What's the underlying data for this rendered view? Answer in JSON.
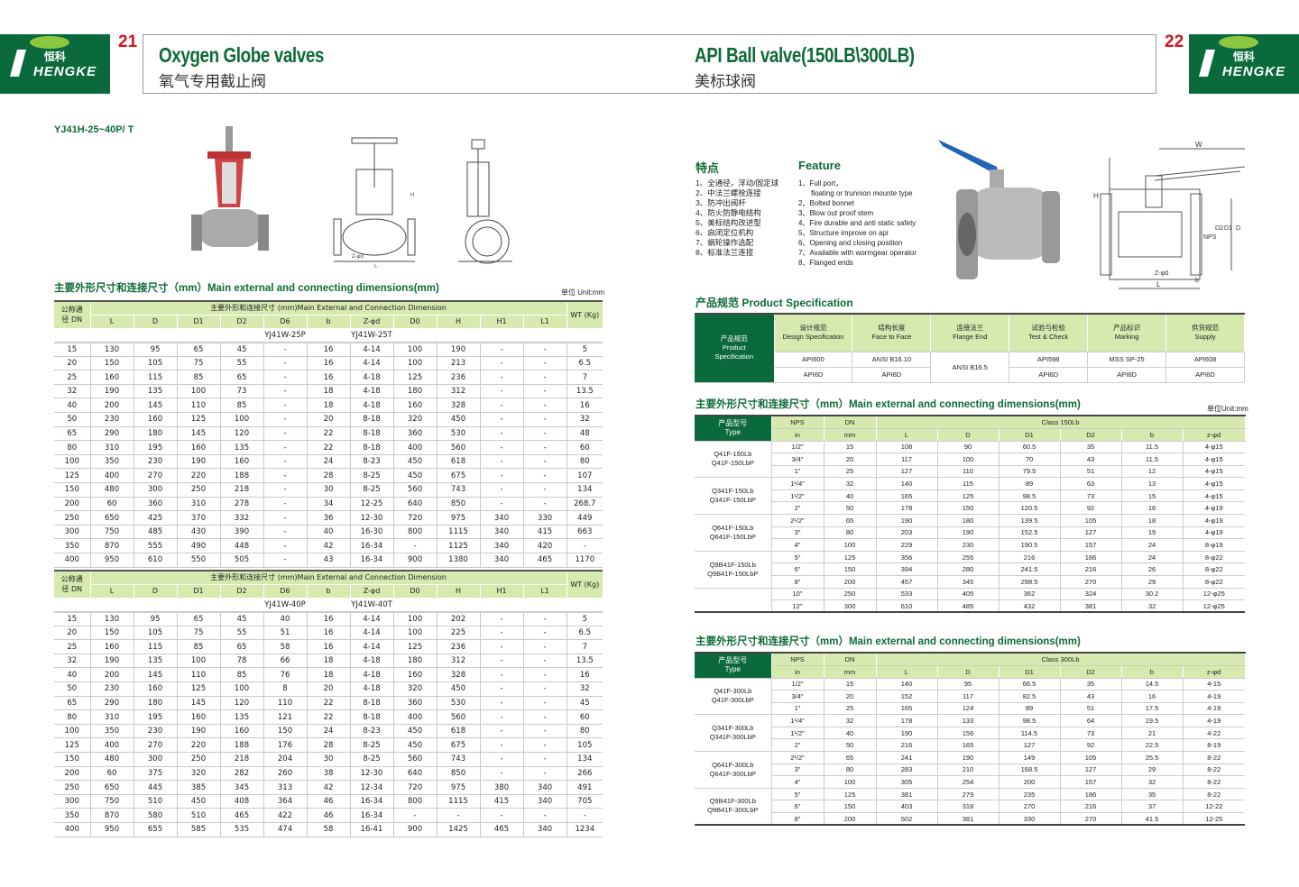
{
  "left_page": {
    "page_number": "21",
    "logo": {
      "brand": "HENGKE",
      "brand_cn": "恒科",
      "color": "#0b6a3b"
    },
    "title": "Oxygen Globe valves",
    "subtitle": "氧气专用截止阀",
    "model_label": "YJ41H-25~40P/ T",
    "section_title": "主要外形尺寸和连接尺寸（mm）Main external and connecting dimensions(mm)",
    "unit_label": "单位 Unit:mm",
    "drawing_labels": [
      "H",
      "L",
      "D0",
      "Z-φd",
      "L1",
      "H1"
    ],
    "table_headers": {
      "dn": "公称通径 DN",
      "group": "主要外形和连接尺寸 (mm)Main External and Connection Dimension",
      "columns": [
        "L",
        "D",
        "D1",
        "D2",
        "D6",
        "b",
        "Z-φd",
        "D0",
        "H",
        "H1",
        "L1"
      ],
      "wt": "WT (Kg)"
    },
    "tables": [
      {
        "models": [
          "YJ41W-25P",
          "YJ41W-25T"
        ],
        "rows": [
          [
            "15",
            "130",
            "95",
            "65",
            "45",
            "-",
            "16",
            "4-14",
            "100",
            "190",
            "-",
            "-",
            "5"
          ],
          [
            "20",
            "150",
            "105",
            "75",
            "55",
            "-",
            "16",
            "4-14",
            "100",
            "213",
            "-",
            "-",
            "6.5"
          ],
          [
            "25",
            "160",
            "115",
            "85",
            "65",
            "-",
            "16",
            "4-18",
            "125",
            "236",
            "-",
            "-",
            "7"
          ],
          [
            "32",
            "190",
            "135",
            "100",
            "73",
            "-",
            "18",
            "4-18",
            "180",
            "312",
            "-",
            "-",
            "13.5"
          ],
          [
            "40",
            "200",
            "145",
            "110",
            "85",
            "-",
            "18",
            "4-18",
            "160",
            "328",
            "-",
            "-",
            "16"
          ],
          [
            "50",
            "230",
            "160",
            "125",
            "100",
            "-",
            "20",
            "8-18",
            "320",
            "450",
            "-",
            "-",
            "32"
          ],
          [
            "65",
            "290",
            "180",
            "145",
            "120",
            "-",
            "22",
            "8-18",
            "360",
            "530",
            "-",
            "-",
            "48"
          ],
          [
            "80",
            "310",
            "195",
            "160",
            "135",
            "-",
            "22",
            "8-18",
            "400",
            "560",
            "-",
            "-",
            "60"
          ],
          [
            "100",
            "350",
            "230",
            "190",
            "160",
            "-",
            "24",
            "8-23",
            "450",
            "618",
            "-",
            "-",
            "80"
          ],
          [
            "125",
            "400",
            "270",
            "220",
            "188",
            "-",
            "28",
            "8-25",
            "450",
            "675",
            "-",
            "-",
            "107"
          ],
          [
            "150",
            "480",
            "300",
            "250",
            "218",
            "-",
            "30",
            "8-25",
            "560",
            "743",
            "-",
            "-",
            "134"
          ],
          [
            "200",
            "60",
            "360",
            "310",
            "278",
            "-",
            "34",
            "12-25",
            "640",
            "850",
            "-",
            "-",
            "268.7"
          ],
          [
            "250",
            "650",
            "425",
            "370",
            "332",
            "-",
            "36",
            "12-30",
            "720",
            "975",
            "340",
            "330",
            "449"
          ],
          [
            "300",
            "750",
            "485",
            "430",
            "390",
            "-",
            "40",
            "16-30",
            "800",
            "1115",
            "340",
            "415",
            "663"
          ],
          [
            "350",
            "870",
            "555",
            "490",
            "448",
            "-",
            "42",
            "16-34",
            "-",
            "1125",
            "340",
            "420",
            "-"
          ],
          [
            "400",
            "950",
            "610",
            "550",
            "505",
            "-",
            "43",
            "16-34",
            "900",
            "1380",
            "340",
            "465",
            "1170"
          ]
        ]
      },
      {
        "models": [
          "YJ41W-40P",
          "YJ41W-40T"
        ],
        "rows": [
          [
            "15",
            "130",
            "95",
            "65",
            "45",
            "40",
            "16",
            "4-14",
            "100",
            "202",
            "-",
            "-",
            "5"
          ],
          [
            "20",
            "150",
            "105",
            "75",
            "55",
            "51",
            "16",
            "4-14",
            "100",
            "225",
            "-",
            "-",
            "6.5"
          ],
          [
            "25",
            "160",
            "115",
            "85",
            "65",
            "58",
            "16",
            "4-14",
            "125",
            "236",
            "-",
            "-",
            "7"
          ],
          [
            "32",
            "190",
            "135",
            "100",
            "78",
            "66",
            "18",
            "4-18",
            "180",
            "312",
            "-",
            "-",
            "13.5"
          ],
          [
            "40",
            "200",
            "145",
            "110",
            "85",
            "76",
            "18",
            "4-18",
            "160",
            "328",
            "-",
            "-",
            "16"
          ],
          [
            "50",
            "230",
            "160",
            "125",
            "100",
            "8",
            "20",
            "4-18",
            "320",
            "450",
            "-",
            "-",
            "32"
          ],
          [
            "65",
            "290",
            "180",
            "145",
            "120",
            "110",
            "22",
            "8-18",
            "360",
            "530",
            "-",
            "-",
            "45"
          ],
          [
            "80",
            "310",
            "195",
            "160",
            "135",
            "121",
            "22",
            "8-18",
            "400",
            "560",
            "-",
            "-",
            "60"
          ],
          [
            "100",
            "350",
            "230",
            "190",
            "160",
            "150",
            "24",
            "8-23",
            "450",
            "618",
            "-",
            "-",
            "80"
          ],
          [
            "125",
            "400",
            "270",
            "220",
            "188",
            "176",
            "28",
            "8-25",
            "450",
            "675",
            "-",
            "-",
            "105"
          ],
          [
            "150",
            "480",
            "300",
            "250",
            "218",
            "204",
            "30",
            "8-25",
            "560",
            "743",
            "-",
            "-",
            "134"
          ],
          [
            "200",
            "60",
            "375",
            "320",
            "282",
            "260",
            "38",
            "12-30",
            "640",
            "850",
            "-",
            "-",
            "266"
          ],
          [
            "250",
            "650",
            "445",
            "385",
            "345",
            "313",
            "42",
            "12-34",
            "720",
            "975",
            "380",
            "340",
            "491"
          ],
          [
            "300",
            "750",
            "510",
            "450",
            "408",
            "364",
            "46",
            "16-34",
            "800",
            "1115",
            "415",
            "340",
            "705"
          ],
          [
            "350",
            "870",
            "580",
            "510",
            "465",
            "422",
            "46",
            "16-34",
            "-",
            "-",
            "-",
            "-",
            "-"
          ],
          [
            "400",
            "950",
            "655",
            "585",
            "535",
            "474",
            "58",
            "16-41",
            "900",
            "1425",
            "465",
            "340",
            "1234"
          ]
        ]
      }
    ]
  },
  "right_page": {
    "page_number": "22",
    "logo": {
      "brand": "HENGKE",
      "brand_cn": "恒科"
    },
    "title": "API Ball valve(150LB\\300LB)",
    "subtitle": "美标球阀",
    "features_cn_title": "特点",
    "features_en_title": "Feature",
    "features_cn": [
      "1、全通径，浮动/固定球",
      "2、中法兰螺栓连接",
      "3、防冲出阀杆",
      "4、防火防静电结构",
      "5、美标结构改进型",
      "6、启闭定位机构",
      "7、蜗轮操作选配",
      "8、标准法兰连接"
    ],
    "features_en": [
      "1、Full port，",
      "floating or trunnion mounte type",
      "2、Bolted bonnet",
      "3、Blow out proof stem",
      "4、Fire durable and anti static safety",
      "5、Structure improve on api",
      "6、Opening and closing position",
      "7、Available with wormgear operator",
      "8、Flanged ends"
    ],
    "drawing_labels": {
      "w": "W",
      "h": "H",
      "l": "L",
      "nps": "NPS",
      "d2": "D2",
      "d1": "D1",
      "d": "D",
      "zd": "Z-φd",
      "b": "b"
    },
    "spec_title": "产品规范 Product Specification",
    "spec": {
      "side": [
        "产品规范",
        "Product",
        "Specification"
      ],
      "headers": [
        [
          "设计规范",
          "Design Specification"
        ],
        [
          "结构长度",
          "Face to Face"
        ],
        [
          "连接法兰",
          "Flange End"
        ],
        [
          "试验与检验",
          "Test & Check"
        ],
        [
          "产品标识",
          "Marking"
        ],
        [
          "供货规范",
          "Supply"
        ]
      ],
      "row1": [
        "API600",
        "ANSI B16.10",
        "ANSI B16.5",
        "API598",
        "MSS SP-25",
        "API608"
      ],
      "row2": [
        "API6D",
        "API6D",
        "API6D",
        "API6D",
        "API6D"
      ]
    },
    "section_title": "主要外形尺寸和连接尺寸（mm）Main external and connecting dimensions(mm)",
    "unit_label": "单位Unit:mm",
    "ball_headers": {
      "type": [
        "产品型号",
        "Type"
      ],
      "nps": "NPS",
      "dn": "DN",
      "in": "in",
      "mm": "mm",
      "cols": [
        "L",
        "D",
        "D1",
        "D2",
        "b",
        "z-φd"
      ]
    },
    "tables": [
      {
        "class": "Class 150Lb",
        "types": [
          [
            "Q41F-150Lb",
            "Q41F-150LbP"
          ],
          [
            "Q341F-150Lb",
            "Q341F-150LbP"
          ],
          [
            "Q641F-150Lb",
            "Q641F-150LbP"
          ],
          [
            "Q9B41F-150Lb",
            "Q9B41F-150LbP"
          ]
        ],
        "rows": [
          [
            "1/2\"",
            "15",
            "108",
            "90",
            "60.5",
            "35",
            "11.5",
            "4-φ15"
          ],
          [
            "3/4\"",
            "20",
            "117",
            "100",
            "70",
            "43",
            "11.5",
            "4-φ15"
          ],
          [
            "1\"",
            "25",
            "127",
            "110",
            "79.5",
            "51",
            "12",
            "4-φ15"
          ],
          [
            "1¹/4\"",
            "32",
            "140",
            "115",
            "89",
            "63",
            "13",
            "4-φ15"
          ],
          [
            "1¹/2\"",
            "40",
            "165",
            "125",
            "98.5",
            "73",
            "15",
            "4-φ15"
          ],
          [
            "2\"",
            "50",
            "178",
            "150",
            "120.5",
            "92",
            "16",
            "4-φ19"
          ],
          [
            "2¹/2\"",
            "65",
            "190",
            "180",
            "139.5",
            "105",
            "18",
            "4-φ19"
          ],
          [
            "3\"",
            "80",
            "203",
            "190",
            "152.5",
            "127",
            "19",
            "4-φ19"
          ],
          [
            "4\"",
            "100",
            "229",
            "230",
            "190.5",
            "157",
            "24",
            "8-φ19"
          ],
          [
            "5\"",
            "125",
            "356",
            "255",
            "216",
            "186",
            "24",
            "8-φ22"
          ],
          [
            "6\"",
            "150",
            "394",
            "280",
            "241.5",
            "216",
            "26",
            "8-φ22"
          ],
          [
            "8\"",
            "200",
            "457",
            "345",
            "298.5",
            "270",
            "29",
            "8-φ22"
          ],
          [
            "10\"",
            "250",
            "533",
            "405",
            "362",
            "324",
            "30.2",
            "12-φ25"
          ],
          [
            "12\"",
            "300",
            "610",
            "485",
            "432",
            "381",
            "32",
            "12-φ25"
          ]
        ]
      },
      {
        "class": "Class 300Lb",
        "types": [
          [
            "Q41F-300Lb",
            "Q41F-300LbP"
          ],
          [
            "Q341F-300Lb",
            "Q341F-300LbP"
          ],
          [
            "Q641F-300Lb",
            "Q641F-300LbP"
          ],
          [
            "Q9B41F-300Lb",
            "Q9B41F-300LbP"
          ]
        ],
        "rows": [
          [
            "1/2\"",
            "15",
            "140",
            "95",
            "66.5",
            "35",
            "14.5",
            "4-15"
          ],
          [
            "3/4\"",
            "20",
            "152",
            "117",
            "82.5",
            "43",
            "16",
            "4-19"
          ],
          [
            "1\"",
            "25",
            "165",
            "124",
            "89",
            "51",
            "17.5",
            "4-19"
          ],
          [
            "1¹/4\"",
            "32",
            "178",
            "133",
            "98.5",
            "64",
            "19.5",
            "4-19"
          ],
          [
            "1¹/2\"",
            "40",
            "190",
            "156",
            "114.5",
            "73",
            "21",
            "4-22"
          ],
          [
            "2\"",
            "50",
            "216",
            "165",
            "127",
            "92",
            "22.5",
            "8-19"
          ],
          [
            "2¹/2\"",
            "65",
            "241",
            "190",
            "149",
            "105",
            "25.5",
            "8-22"
          ],
          [
            "3\"",
            "80",
            "283",
            "210",
            "168.5",
            "127",
            "29",
            "8-22"
          ],
          [
            "4\"",
            "100",
            "305",
            "254",
            "200",
            "157",
            "32",
            "8-22"
          ],
          [
            "5\"",
            "125",
            "381",
            "279",
            "235",
            "186",
            "35",
            "8-22"
          ],
          [
            "6\"",
            "150",
            "403",
            "318",
            "270",
            "216",
            "37",
            "12-22"
          ],
          [
            "8\"",
            "200",
            "502",
            "381",
            "330",
            "270",
            "41.5",
            "12-25"
          ]
        ]
      }
    ]
  }
}
